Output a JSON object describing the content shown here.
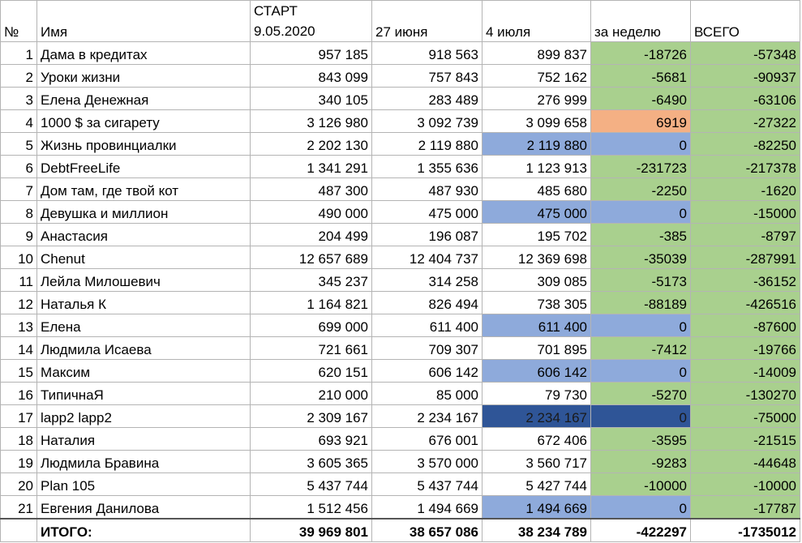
{
  "header": {
    "col_num": "№",
    "col_name": "Имя",
    "col_start_line1": "СТАРТ",
    "col_start_line2": "9.05.2020",
    "col_june": "27 июня",
    "col_july": "4 июля",
    "col_week": "за неделю",
    "col_total": "ВСЕГО"
  },
  "rows": [
    {
      "n": "1",
      "name": "Дама в кредитах",
      "start": "957 185",
      "june": "918 563",
      "july": "899 837",
      "week": "-18726",
      "total": "-57348",
      "week_bg": "green",
      "july_bg": "",
      "small_june": false,
      "small_july": false,
      "small_start": false
    },
    {
      "n": "2",
      "name": "Уроки жизни",
      "start": "843 099",
      "june": "757 843",
      "july": "752 162",
      "week": "-5681",
      "total": "-90937",
      "week_bg": "green",
      "july_bg": ""
    },
    {
      "n": "3",
      "name": "Елена Денежная",
      "start": "340 105",
      "june": "283 489",
      "july": "276 999",
      "week": "-6490",
      "total": "-63106",
      "week_bg": "green",
      "july_bg": ""
    },
    {
      "n": "4",
      "name": "1000 $ за сигарету",
      "start": "3 126 980",
      "june": "3 092 739",
      "july": "3 099 658",
      "week": "6919",
      "total": "-27322",
      "week_bg": "orange",
      "july_bg": ""
    },
    {
      "n": "5",
      "name": "Жизнь провинциалки",
      "start": "2 202 130",
      "june": "2 119 880",
      "july": "2 119 880",
      "week": "0",
      "total": "-82250",
      "week_bg": "blue",
      "july_bg": "blue"
    },
    {
      "n": "6",
      "name": "DebtFreeLife",
      "start": "1 341 291",
      "june": "1 355 636",
      "july": "1 123 913",
      "week": "-231723",
      "total": "-217378",
      "week_bg": "green",
      "july_bg": ""
    },
    {
      "n": "7",
      "name": "Дом там, где твой кот",
      "start": "487 300",
      "june": "487 930",
      "july": "485 680",
      "week": "-2250",
      "total": "-1620",
      "week_bg": "green",
      "july_bg": ""
    },
    {
      "n": "8",
      "name": "Девушка и миллион",
      "start": "490 000",
      "june": "475 000",
      "july": "475 000",
      "week": "0",
      "total": "-15000",
      "week_bg": "blue",
      "july_bg": "blue"
    },
    {
      "n": "9",
      "name": "Анастасия",
      "start": "204 499",
      "june": "196 087",
      "july": "195 702",
      "week": "-385",
      "total": "-8797",
      "week_bg": "green",
      "july_bg": ""
    },
    {
      "n": "10",
      "name": "Chenut",
      "start": "12 657 689",
      "june": "12 404 737",
      "july": "12 369 698",
      "week": "-35039",
      "total": "-287991",
      "week_bg": "green",
      "july_bg": ""
    },
    {
      "n": "11",
      "name": "Лейла Милошевич",
      "start": "345 237",
      "june": "314 258",
      "july": "309 085",
      "week": "-5173",
      "total": "-36152",
      "week_bg": "green",
      "july_bg": ""
    },
    {
      "n": "12",
      "name": "Наталья К",
      "start": "1 164 821",
      "june": "826 494",
      "july": "738 305",
      "week": "-88189",
      "total": "-426516",
      "week_bg": "green",
      "july_bg": "",
      "small_june": true,
      "small_july": true
    },
    {
      "n": "13",
      "name": "Елена",
      "start": "699 000",
      "june": "611 400",
      "july": "611 400",
      "week": "0",
      "total": "-87600",
      "week_bg": "blue",
      "july_bg": "blue"
    },
    {
      "n": "14",
      "name": "Людмила Исаева",
      "start": "721 661",
      "june": "709 307",
      "july": "701 895",
      "week": "-7412",
      "total": "-19766",
      "week_bg": "green",
      "july_bg": ""
    },
    {
      "n": "15",
      "name": "Максим",
      "start": "620 151",
      "june": "606 142",
      "july": "606 142",
      "week": "0",
      "total": "-14009",
      "week_bg": "blue",
      "july_bg": "blue"
    },
    {
      "n": "16",
      "name": "ТипичнаЯ",
      "start": "210 000",
      "june": "85 000",
      "july": "79 730",
      "week": "-5270",
      "total": "-130270",
      "week_bg": "green",
      "july_bg": ""
    },
    {
      "n": "17",
      "name": "lapp2 lapp2",
      "start": "2 309 167",
      "june": "2 234 167",
      "july": "2 234 167",
      "week": "0",
      "total": "-75000",
      "week_bg": "dark",
      "july_bg": "dark"
    },
    {
      "n": "18",
      "name": "Наталия",
      "start": "693 921",
      "june": "676 001",
      "july": "672 406",
      "week": "-3595",
      "total": "-21515",
      "week_bg": "green",
      "july_bg": ""
    },
    {
      "n": "19",
      "name": "Людмила Бравина",
      "start": "3 605 365",
      "june": "3 570 000",
      "july": "3 560 717",
      "week": "-9283",
      "total": "-44648",
      "week_bg": "green",
      "july_bg": ""
    },
    {
      "n": "20",
      "name": "Plan 105",
      "start": "5 437 744",
      "june": "5 437 744",
      "july": "5 427 744",
      "week": "-10000",
      "total": "-10000",
      "week_bg": "green",
      "july_bg": ""
    },
    {
      "n": "21",
      "name": "Евгения Данилова",
      "start": "1 512 456",
      "june": "1 494 669",
      "july": "1 494 669",
      "week": "0",
      "total": "-17787",
      "week_bg": "blue",
      "july_bg": "blue",
      "small_start": true
    }
  ],
  "totals": {
    "label": "ИТОГО:",
    "start": "39 969 801",
    "june": "38 657 086",
    "july": "38 234 789",
    "week": "-422297",
    "total": "-1735012"
  },
  "colors": {
    "green": "#a9d08e",
    "orange": "#f4b084",
    "blue": "#8eaadb",
    "dark": "#2f5597"
  }
}
